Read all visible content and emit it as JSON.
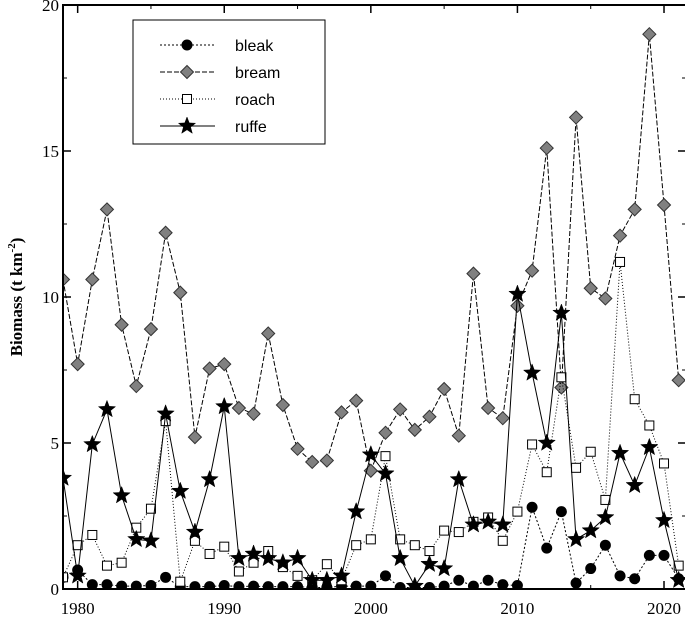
{
  "chart_data": {
    "type": "line",
    "title": "",
    "xlabel": "",
    "ylabel": "Biomass (t km",
    "ylabel_sup": "-2",
    "ylabel_close": ")",
    "xlim": [
      1979,
      2021.5
    ],
    "ylim": [
      0,
      20
    ],
    "xticks": [
      1980,
      1990,
      2000,
      2010,
      2020
    ],
    "yticks": [
      0,
      5,
      10,
      15,
      20
    ],
    "legend_position": "top-left",
    "grid": false,
    "x": [
      1979,
      1980,
      1981,
      1982,
      1983,
      1984,
      1985,
      1986,
      1987,
      1988,
      1989,
      1990,
      1991,
      1992,
      1993,
      1994,
      1995,
      1996,
      1997,
      1998,
      1999,
      2000,
      2001,
      2002,
      2003,
      2004,
      2005,
      2006,
      2007,
      2008,
      2009,
      2010,
      2011,
      2012,
      2013,
      2014,
      2015,
      2016,
      2017,
      2018,
      2019,
      2020,
      2021
    ],
    "series": [
      {
        "name": "bleak",
        "marker": "circle",
        "dash": "2,2",
        "fill": "#000000",
        "values": [
          0.4,
          0.65,
          0.15,
          0.15,
          0.1,
          0.1,
          0.12,
          0.4,
          0.08,
          0.08,
          0.08,
          0.12,
          0.08,
          0.1,
          0.08,
          0.08,
          0.08,
          0.05,
          0.05,
          0.1,
          0.1,
          0.1,
          0.45,
          0.05,
          0.05,
          0.05,
          0.1,
          0.3,
          0.1,
          0.3,
          0.15,
          0.12,
          2.8,
          1.4,
          2.65,
          0.2,
          0.7,
          1.5,
          0.45,
          0.35,
          1.15,
          1.15,
          0.35
        ]
      },
      {
        "name": "bream",
        "marker": "diamond",
        "dash": "5,2",
        "fill": "#808080",
        "values": [
          10.6,
          7.7,
          10.6,
          13.0,
          9.05,
          6.95,
          8.9,
          12.2,
          10.15,
          5.2,
          7.55,
          7.7,
          6.2,
          6.0,
          8.75,
          6.3,
          4.8,
          4.35,
          4.4,
          6.05,
          6.45,
          4.05,
          5.35,
          6.15,
          5.45,
          5.9,
          6.85,
          5.25,
          10.8,
          6.2,
          5.85,
          9.7,
          10.9,
          15.1,
          6.9,
          16.15,
          10.3,
          9.95,
          12.1,
          13.0,
          19.0,
          13.15,
          7.15
        ]
      },
      {
        "name": "roach",
        "marker": "square",
        "dash": "1,2",
        "fill": "#ffffff",
        "values": [
          0.4,
          1.5,
          1.85,
          0.8,
          0.9,
          2.1,
          2.75,
          5.75,
          0.25,
          1.65,
          1.2,
          1.45,
          0.6,
          0.9,
          1.3,
          0.75,
          0.45,
          0.3,
          0.85,
          0.3,
          1.5,
          1.7,
          4.55,
          1.7,
          1.5,
          1.3,
          2.0,
          1.95,
          2.3,
          2.45,
          1.65,
          2.65,
          4.95,
          4.0,
          7.25,
          4.15,
          4.7,
          3.05,
          11.2,
          6.5,
          5.6,
          4.3,
          0.8
        ]
      },
      {
        "name": "ruffe",
        "marker": "star",
        "dash": "",
        "fill": "#000000",
        "values": [
          3.8,
          0.45,
          4.95,
          6.15,
          3.2,
          1.7,
          1.65,
          6.0,
          3.35,
          1.95,
          3.75,
          6.25,
          1.05,
          1.2,
          1.05,
          0.9,
          1.05,
          0.3,
          0.3,
          0.45,
          2.65,
          4.6,
          3.95,
          1.05,
          0.1,
          0.85,
          0.7,
          3.75,
          2.2,
          2.3,
          2.2,
          10.1,
          7.4,
          5.0,
          9.45,
          1.7,
          2.0,
          2.45,
          4.65,
          3.55,
          4.85,
          2.35,
          0.3
        ]
      }
    ]
  }
}
